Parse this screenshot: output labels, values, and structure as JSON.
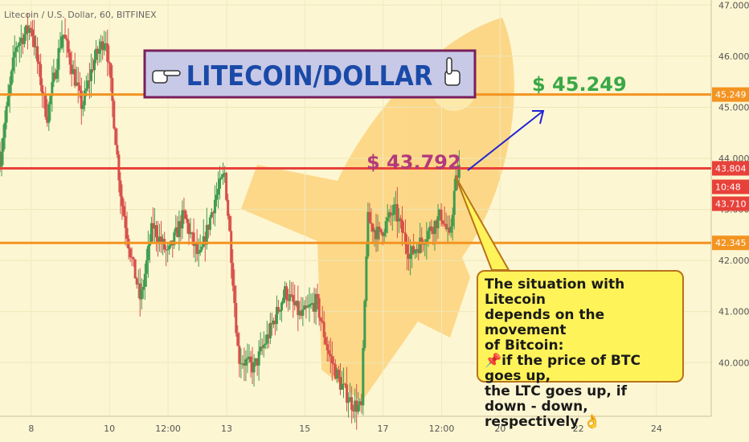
{
  "chart_data": {
    "type": "candlestick",
    "title": "LITECOIN/DOLLAR",
    "legend": "Litecoin / U.S. Dollar, 60, BITFINEX",
    "y_range": [
      38.95,
      47.1
    ],
    "x_range_days": [
      7.2,
      25.4
    ],
    "y_ticks": [
      "47.000",
      "46.000",
      "45.000",
      "44.000",
      "43.000",
      "42.000",
      "41.000",
      "40.000"
    ],
    "x_ticks": [
      {
        "label": "8",
        "day": 8
      },
      {
        "label": "10",
        "day": 10
      },
      {
        "label": "12:00",
        "day": 11.5
      },
      {
        "label": "13",
        "day": 13
      },
      {
        "label": "15",
        "day": 15
      },
      {
        "label": "17",
        "day": 17
      },
      {
        "label": "12:00",
        "day": 18.5
      },
      {
        "label": "20",
        "day": 20
      },
      {
        "label": "22",
        "day": 22
      },
      {
        "label": "24",
        "day": 24
      }
    ],
    "levels": [
      {
        "value": 45.249,
        "label": "45.249",
        "color": "#f39421"
      },
      {
        "value": 43.804,
        "label": "43.804",
        "color": "#e8413a"
      },
      {
        "value": 42.345,
        "label": "42.345",
        "color": "#f39421"
      }
    ],
    "price_badges": [
      {
        "value": 43.65,
        "label": "10:48"
      },
      {
        "value": 43.71,
        "label": "43.710"
      }
    ],
    "annotations": {
      "current_price": "$ 43.792",
      "target_price": "$ 45.249"
    },
    "price_path": [
      {
        "day": 7.2,
        "price": 44.0
      },
      {
        "day": 7.6,
        "price": 46.2
      },
      {
        "day": 8.0,
        "price": 46.6
      },
      {
        "day": 8.4,
        "price": 44.8
      },
      {
        "day": 8.8,
        "price": 46.5
      },
      {
        "day": 9.3,
        "price": 45.0
      },
      {
        "day": 9.6,
        "price": 45.9
      },
      {
        "day": 9.9,
        "price": 46.4
      },
      {
        "day": 10.05,
        "price": 45.3
      },
      {
        "day": 10.3,
        "price": 43.2
      },
      {
        "day": 10.55,
        "price": 42.1
      },
      {
        "day": 10.8,
        "price": 41.2
      },
      {
        "day": 11.1,
        "price": 42.7
      },
      {
        "day": 11.5,
        "price": 42.1
      },
      {
        "day": 11.9,
        "price": 42.9
      },
      {
        "day": 12.3,
        "price": 42.0
      },
      {
        "day": 12.7,
        "price": 43.2
      },
      {
        "day": 12.95,
        "price": 43.7
      },
      {
        "day": 13.1,
        "price": 42.3
      },
      {
        "day": 13.3,
        "price": 40.1
      },
      {
        "day": 13.7,
        "price": 39.9
      },
      {
        "day": 14.1,
        "price": 40.6
      },
      {
        "day": 14.5,
        "price": 41.4
      },
      {
        "day": 14.9,
        "price": 40.9
      },
      {
        "day": 15.3,
        "price": 41.2
      },
      {
        "day": 15.6,
        "price": 40.2
      },
      {
        "day": 15.9,
        "price": 39.6
      },
      {
        "day": 16.2,
        "price": 39.2
      },
      {
        "day": 16.45,
        "price": 39.1
      },
      {
        "day": 16.6,
        "price": 42.8
      },
      {
        "day": 16.9,
        "price": 42.5
      },
      {
        "day": 17.3,
        "price": 43.0
      },
      {
        "day": 17.7,
        "price": 42.1
      },
      {
        "day": 18.1,
        "price": 42.5
      },
      {
        "day": 18.5,
        "price": 42.9
      },
      {
        "day": 18.7,
        "price": 42.4
      },
      {
        "day": 18.85,
        "price": 43.5
      },
      {
        "day": 18.95,
        "price": 43.79
      }
    ]
  },
  "callout": {
    "text": "The situation with Litecoin\n depends on the movement\nof Bitcoin:\n📌if the price of BTC goes up,\nthe LTC goes up, if\ndown - down, respectively 👌"
  },
  "colors": {
    "background": "#fdf6d2",
    "up": "#3f9b4f",
    "down": "#d6504a",
    "level_orange": "#f39421",
    "level_red": "#e8413a",
    "current_price_label": "#b33a7a",
    "target_price_label": "#39a846",
    "arrow": "#1f23d6",
    "title": "#1a4aa8"
  },
  "icons": [
    "pointing-right-hand-icon",
    "pointing-up-hand-icon",
    "pushpin-icon",
    "ok-hand-icon",
    "rocket-watermark-icon"
  ]
}
